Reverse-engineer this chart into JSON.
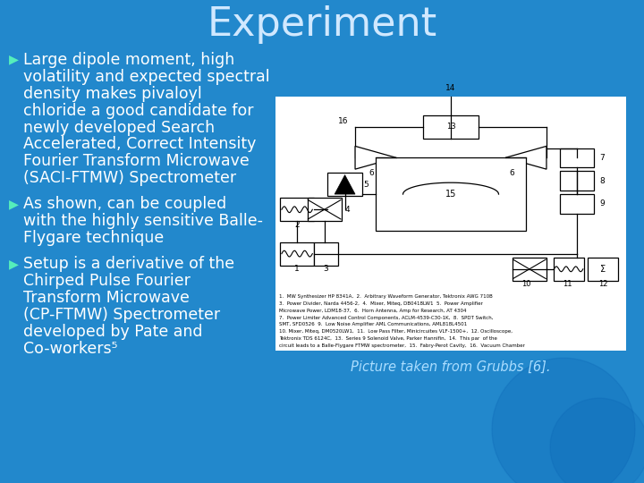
{
  "title": "Experiment",
  "title_color": "#d0e8ff",
  "title_fontsize": 32,
  "bg_color": "#2288cc",
  "bullet_color": "#ffffff",
  "bullet_marker_color": "#55eebb",
  "text_fontsize": 12.5,
  "caption_color": "#aaddff",
  "caption_fontsize": 10.5,
  "bullet1_lines": [
    "Large dipole moment, high",
    "volatility and expected spectral",
    "density makes pivaloyl",
    "chloride a good candidate for",
    "newly developed Search",
    "Accelerated, Correct Intensity",
    "Fourier Transform Microwave",
    "(SACI-FTMW) Spectrometer"
  ],
  "bullet2_lines": [
    "As shown, can be coupled",
    "with the highly sensitive Balle-",
    "Flygare technique"
  ],
  "bullet3_lines": [
    "Setup is a derivative of the",
    "Chirped Pulse Fourier",
    "Transform Microwave",
    "(CP-FTMW) Spectrometer",
    "developed by Pate and",
    "Co-workers⁵"
  ],
  "caption": "Picture taken from Grubbs [6].",
  "diagram_caption_lines": [
    "1.  MW Synthesizer HP 8341A,  2.  Arbitrary Waveform Generator, Tektronix AWG 710B",
    "3.  Power Divider, Narda 4456-2,  4.  Mixer, Miteq, DB0418LW1  5.  Power Amplifier",
    "Microwave Power, LDM18-37,  6.  Horn Antenna, Amp for Research, AT 4304",
    "7.  Power Limiter Advanced Control Components, ACLM-4539-C30-1K,  8.  SPDT Switch,",
    "SMT, SFD0526  9.  Low Noise Amplifier AML Communications, AML818L4501",
    "10. Mixer, Miteq, DM0520LW1,  11.  Low Pass Filter, Minicircuites VLF-1500+,  12. Oscilloscope,",
    "Tektronix TDS 6124C,  13.  Series 9 Solenoid Valve, Parker Hannifin,  14.  This par  of the",
    "circuit leads to a Balle-Flygare FTMW spectrometer,  15.  Fabry-Perot Cavity,  16.  Vacuum Chamber"
  ],
  "watermark_color": "#1a7ab5"
}
